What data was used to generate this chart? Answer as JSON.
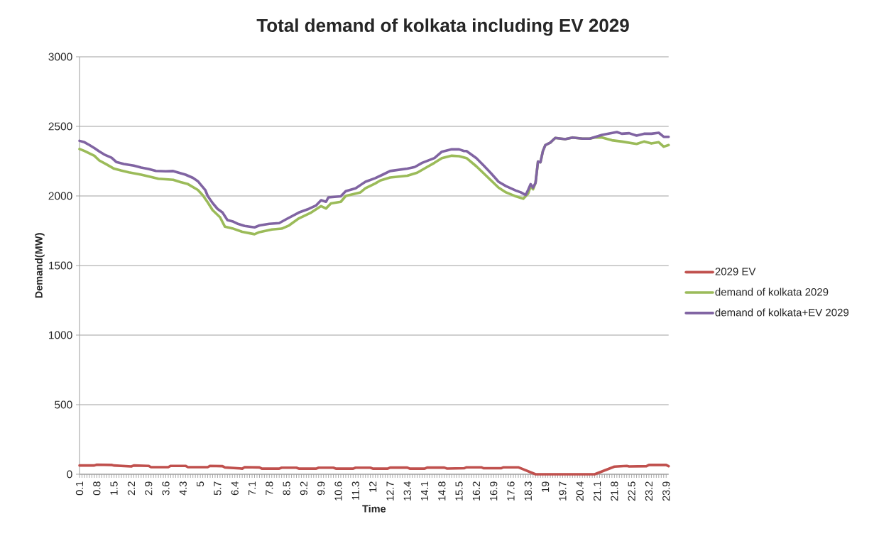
{
  "chart_data": {
    "type": "line",
    "title": "Total demand of kolkata including EV 2029",
    "xlabel": "Time",
    "ylabel": "Demand(MW)",
    "xlim": [
      0.1,
      24.0
    ],
    "xticks": [
      0.1,
      0.8,
      1.5,
      2.2,
      2.9,
      3.6,
      4.3,
      5,
      5.7,
      6.4,
      7.1,
      7.8,
      8.5,
      9.2,
      9.9,
      10.6,
      11.3,
      12,
      12.7,
      13.4,
      14.1,
      14.8,
      15.5,
      16.2,
      16.9,
      17.6,
      18.3,
      19,
      19.7,
      20.4,
      21.1,
      21.8,
      22.5,
      23.2,
      23.9
    ],
    "ylim": [
      0,
      3000
    ],
    "yticks": [
      0,
      500,
      1000,
      1500,
      2000,
      2500,
      3000
    ],
    "grid": "y",
    "legend": "right",
    "marker": "none",
    "line_style": "solid",
    "series": [
      {
        "name": "2029 EV",
        "color": "#c0504d",
        "x": [
          0.1,
          0.7,
          0.8,
          1.4,
          1.5,
          2.2,
          2.3,
          2.9,
          3.0,
          3.7,
          3.8,
          4.4,
          4.5,
          5.3,
          5.4,
          5.9,
          6.0,
          6.6,
          6.7,
          6.8,
          7.4,
          7.5,
          8.2,
          8.3,
          8.9,
          9.0,
          9.7,
          9.8,
          10.4,
          10.5,
          11.2,
          11.3,
          11.9,
          12.0,
          12.6,
          12.7,
          13.4,
          13.5,
          14.1,
          14.2,
          14.9,
          15.0,
          15.7,
          15.8,
          16.4,
          16.5,
          17.2,
          17.3,
          17.9,
          18.6,
          21.0,
          21.8,
          22.3,
          22.4,
          23.1,
          23.2,
          23.9,
          24.0
        ],
        "values": [
          63,
          63,
          69,
          67,
          63,
          56,
          63,
          60,
          51,
          51,
          60,
          60,
          51,
          51,
          60,
          58,
          49,
          42,
          40,
          51,
          49,
          40,
          40,
          47,
          47,
          40,
          40,
          47,
          47,
          40,
          40,
          47,
          47,
          40,
          40,
          48,
          48,
          40,
          40,
          48,
          48,
          41,
          43,
          50,
          50,
          43,
          43,
          50,
          50,
          0,
          0,
          55,
          60,
          56,
          58,
          67,
          67,
          58
        ]
      },
      {
        "name": "demand of kolkata 2029",
        "color": "#9bbb59",
        "x": [
          0.1,
          0.3,
          0.7,
          0.9,
          1.2,
          1.5,
          1.8,
          2.1,
          2.6,
          3.0,
          3.3,
          3.9,
          4.2,
          4.5,
          4.9,
          5.1,
          5.3,
          5.5,
          5.8,
          6.0,
          6.3,
          6.7,
          7.2,
          7.4,
          7.9,
          8.3,
          8.6,
          9.0,
          9.5,
          9.9,
          10.1,
          10.3,
          10.7,
          10.9,
          11.5,
          11.7,
          12.1,
          12.3,
          12.7,
          13.4,
          13.8,
          14.2,
          14.5,
          14.8,
          15.2,
          15.5,
          15.8,
          16.2,
          16.5,
          16.8,
          17.1,
          17.4,
          17.8,
          18.1,
          18.3,
          18.4,
          18.5,
          18.6,
          18.7,
          18.8,
          18.9,
          19.0,
          19.2,
          19.4,
          19.8,
          20.1,
          20.5,
          20.8,
          21.0,
          21.3,
          21.7,
          22.1,
          22.7,
          23.0,
          23.3,
          23.6,
          23.8,
          24.0
        ],
        "values": [
          2337,
          2323,
          2289,
          2255,
          2226,
          2196,
          2182,
          2170,
          2153,
          2136,
          2124,
          2116,
          2099,
          2085,
          2043,
          2005,
          1954,
          1898,
          1847,
          1779,
          1767,
          1742,
          1725,
          1740,
          1759,
          1765,
          1788,
          1839,
          1881,
          1927,
          1910,
          1946,
          1958,
          2000,
          2026,
          2055,
          2090,
          2111,
          2133,
          2145,
          2167,
          2208,
          2238,
          2272,
          2289,
          2286,
          2272,
          2213,
          2162,
          2111,
          2060,
          2026,
          1997,
          1980,
          2017,
          2068,
          2048,
          2094,
          2247,
          2242,
          2323,
          2366,
          2383,
          2417,
          2408,
          2420,
          2412,
          2412,
          2420,
          2420,
          2400,
          2391,
          2374,
          2391,
          2377,
          2386,
          2354,
          2366
        ]
      },
      {
        "name": "demand of kolkata+EV 2029",
        "color": "#8064a2",
        "x": [
          0.1,
          0.3,
          0.5,
          0.7,
          0.9,
          1.1,
          1.4,
          1.6,
          1.9,
          2.3,
          2.6,
          2.9,
          3.2,
          3.6,
          3.9,
          4.2,
          4.4,
          4.7,
          4.9,
          5.0,
          5.2,
          5.3,
          5.5,
          5.7,
          5.9,
          6.1,
          6.3,
          6.5,
          6.8,
          7.2,
          7.4,
          7.8,
          8.2,
          8.5,
          9.0,
          9.4,
          9.7,
          9.9,
          10.1,
          10.2,
          10.7,
          10.9,
          11.3,
          11.7,
          12.1,
          12.4,
          12.7,
          13.4,
          13.7,
          14.0,
          14.5,
          14.8,
          15.2,
          15.5,
          15.7,
          15.8,
          16.2,
          16.5,
          16.8,
          17.1,
          17.4,
          17.8,
          18.0,
          18.2,
          18.3,
          18.4,
          18.5,
          18.6,
          18.7,
          18.8,
          18.9,
          19.0,
          19.2,
          19.4,
          19.8,
          20.1,
          20.5,
          20.8,
          21.3,
          21.9,
          22.1,
          22.4,
          22.7,
          23.0,
          23.3,
          23.6,
          23.8,
          24.0
        ],
        "values": [
          2396,
          2386,
          2366,
          2344,
          2320,
          2298,
          2275,
          2243,
          2230,
          2218,
          2204,
          2194,
          2180,
          2177,
          2179,
          2163,
          2153,
          2130,
          2106,
          2085,
          2043,
          2000,
          1949,
          1907,
          1881,
          1827,
          1818,
          1801,
          1784,
          1774,
          1788,
          1800,
          1805,
          1834,
          1881,
          1907,
          1932,
          1969,
          1958,
          1990,
          1997,
          2034,
          2055,
          2102,
          2128,
          2153,
          2179,
          2196,
          2208,
          2238,
          2272,
          2318,
          2335,
          2335,
          2323,
          2323,
          2272,
          2218,
          2162,
          2102,
          2071,
          2039,
          2026,
          2007,
          2043,
          2085,
          2060,
          2094,
          2247,
          2242,
          2323,
          2366,
          2383,
          2417,
          2408,
          2420,
          2412,
          2412,
          2439,
          2459,
          2447,
          2451,
          2434,
          2447,
          2447,
          2454,
          2425,
          2425
        ]
      }
    ]
  }
}
